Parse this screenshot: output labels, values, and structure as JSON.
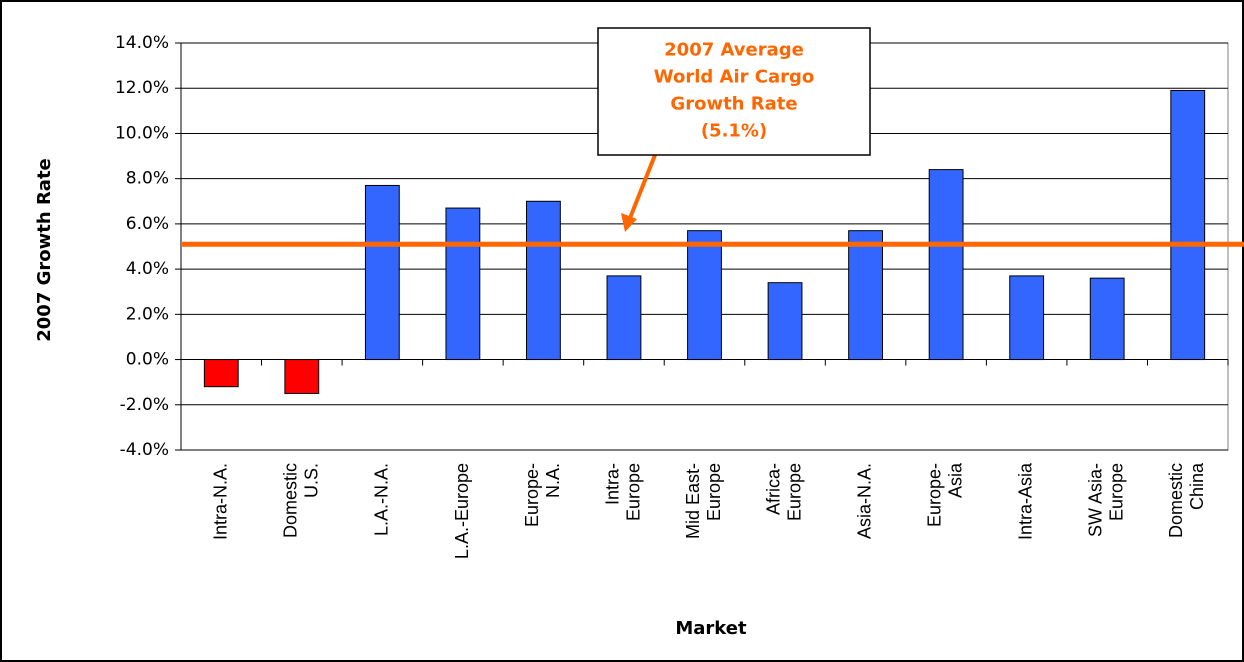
{
  "chart_data": {
    "type": "bar",
    "y_label": "2007 Growth Rate",
    "x_label": "Market",
    "categories": [
      "Intra-N.A.",
      "Domestic\nU.S.",
      "L.A.-N.A.",
      "L.A.-Europe",
      "Europe-\nN.A.",
      "Intra-\nEurope",
      "Mid East-\nEurope",
      "Africa-\nEurope",
      "Asia-N.A.",
      "Europe-\nAsia",
      "Intra-Asia",
      "SW Asia-\nEurope",
      "Domestic\nChina"
    ],
    "values": [
      -1.2,
      -1.5,
      7.7,
      6.7,
      7.0,
      3.7,
      5.7,
      3.4,
      5.7,
      8.4,
      3.7,
      3.6,
      11.9
    ],
    "color": "#3366ff",
    "negative_color": "#ff0000",
    "ylim": [
      -4,
      14
    ],
    "yticks": [
      {
        "value": -4,
        "label": "-4.0%"
      },
      {
        "value": -2,
        "label": "-2.0%"
      },
      {
        "value": 0,
        "label": "0.0%"
      },
      {
        "value": 2,
        "label": "2.0%"
      },
      {
        "value": 4,
        "label": "4.0%"
      },
      {
        "value": 6,
        "label": "6.0%"
      },
      {
        "value": 8,
        "label": "8.0%"
      },
      {
        "value": 10,
        "label": "10.0%"
      },
      {
        "value": 12,
        "label": "12.0%"
      },
      {
        "value": 14,
        "label": "14.0%"
      }
    ],
    "grid": true,
    "reference_line": {
      "value": 5.1,
      "color": "#ff6600"
    },
    "annotation": "2007 Average\nWorld Air Cargo\nGrowth Rate\n(5.1%)"
  }
}
